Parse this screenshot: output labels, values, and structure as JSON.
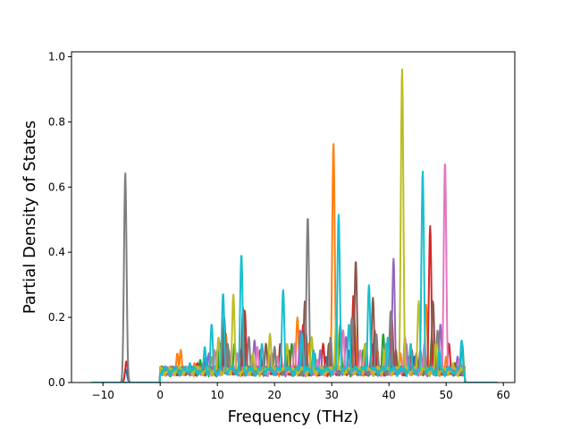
{
  "chart_data": {
    "type": "line",
    "title": "",
    "xlabel": "Frequency (THz)",
    "ylabel": "Partial Density of States",
    "xlim": [
      -15.5,
      62.0
    ],
    "ylim": [
      0.0,
      1.015
    ],
    "xticks": [
      -10,
      0,
      10,
      20,
      30,
      40,
      50,
      60
    ],
    "yticks": [
      0.0,
      0.2,
      0.4,
      0.6,
      0.8,
      1.0
    ],
    "xtick_labels": [
      "−10",
      "0",
      "10",
      "20",
      "30",
      "40",
      "50",
      "60"
    ],
    "ytick_labels": [
      "0.0",
      "0.2",
      "0.4",
      "0.6",
      "0.8",
      "1.0"
    ],
    "grid": false,
    "legend": "none",
    "x_range": [
      -12.0,
      59.0
    ],
    "series": [
      {
        "color": "#1f77b4",
        "peaks": [
          [
            -6.0,
            0.04
          ],
          [
            2.0,
            0.03
          ],
          [
            5.0,
            0.05
          ],
          [
            8.0,
            0.08
          ],
          [
            10.5,
            0.12
          ],
          [
            14.0,
            0.1
          ],
          [
            18.0,
            0.07
          ],
          [
            22.0,
            0.09
          ],
          [
            25.5,
            0.15
          ],
          [
            29.0,
            0.08
          ],
          [
            33.0,
            0.1
          ],
          [
            37.0,
            0.12
          ],
          [
            41.0,
            0.06
          ],
          [
            44.5,
            0.08
          ],
          [
            48.0,
            0.06
          ],
          [
            51.0,
            0.04
          ],
          [
            52.5,
            0.06
          ]
        ]
      },
      {
        "color": "#ff7f0e",
        "peaks": [
          [
            3.0,
            0.09
          ],
          [
            3.6,
            0.1
          ],
          [
            6.0,
            0.06
          ],
          [
            9.0,
            0.08
          ],
          [
            11.5,
            0.15
          ],
          [
            15.0,
            0.12
          ],
          [
            19.0,
            0.09
          ],
          [
            24.0,
            0.2
          ],
          [
            26.0,
            0.12
          ],
          [
            30.3,
            0.735
          ],
          [
            34.0,
            0.18
          ],
          [
            38.0,
            0.1
          ],
          [
            42.0,
            0.09
          ],
          [
            46.5,
            0.24
          ],
          [
            50.0,
            0.08
          ]
        ]
      },
      {
        "color": "#2ca02c",
        "peaks": [
          [
            4.0,
            0.04
          ],
          [
            7.0,
            0.07
          ],
          [
            10.0,
            0.1
          ],
          [
            13.0,
            0.12
          ],
          [
            16.0,
            0.08
          ],
          [
            20.0,
            0.1
          ],
          [
            23.0,
            0.12
          ],
          [
            27.0,
            0.09
          ],
          [
            31.5,
            0.18
          ],
          [
            35.5,
            0.1
          ],
          [
            39.0,
            0.15
          ],
          [
            43.0,
            0.12
          ],
          [
            47.5,
            0.14
          ],
          [
            52.8,
            0.12
          ]
        ]
      },
      {
        "color": "#d62728",
        "peaks": [
          [
            -5.9,
            0.065
          ],
          [
            2.5,
            0.03
          ],
          [
            6.5,
            0.06
          ],
          [
            10.8,
            0.14
          ],
          [
            14.8,
            0.22
          ],
          [
            17.5,
            0.1
          ],
          [
            21.0,
            0.12
          ],
          [
            25.0,
            0.18
          ],
          [
            28.5,
            0.12
          ],
          [
            33.8,
            0.27
          ],
          [
            37.5,
            0.16
          ],
          [
            40.5,
            0.2
          ],
          [
            44.0,
            0.1
          ],
          [
            47.2,
            0.48
          ],
          [
            50.5,
            0.12
          ]
        ]
      },
      {
        "color": "#9467bd",
        "peaks": [
          [
            5.5,
            0.05
          ],
          [
            8.5,
            0.09
          ],
          [
            12.0,
            0.1
          ],
          [
            16.5,
            0.13
          ],
          [
            19.5,
            0.09
          ],
          [
            24.5,
            0.16
          ],
          [
            28.0,
            0.1
          ],
          [
            32.5,
            0.14
          ],
          [
            36.0,
            0.12
          ],
          [
            40.8,
            0.38
          ],
          [
            43.5,
            0.08
          ],
          [
            49.0,
            0.18
          ],
          [
            52.0,
            0.08
          ]
        ]
      },
      {
        "color": "#8c564b",
        "peaks": [
          [
            1.5,
            0.02
          ],
          [
            6.8,
            0.05
          ],
          [
            11.2,
            0.2
          ],
          [
            14.5,
            0.23
          ],
          [
            18.5,
            0.12
          ],
          [
            22.5,
            0.1
          ],
          [
            25.3,
            0.25
          ],
          [
            29.5,
            0.12
          ],
          [
            34.2,
            0.375
          ],
          [
            37.2,
            0.26
          ],
          [
            41.2,
            0.1
          ],
          [
            45.5,
            0.1
          ],
          [
            47.7,
            0.25
          ],
          [
            51.5,
            0.06
          ]
        ]
      },
      {
        "color": "#e377c2",
        "peaks": [
          [
            4.5,
            0.05
          ],
          [
            9.5,
            0.1
          ],
          [
            13.5,
            0.09
          ],
          [
            17.0,
            0.11
          ],
          [
            20.5,
            0.08
          ],
          [
            23.5,
            0.12
          ],
          [
            27.5,
            0.07
          ],
          [
            32.0,
            0.16
          ],
          [
            35.0,
            0.1
          ],
          [
            39.5,
            0.12
          ],
          [
            42.8,
            0.14
          ],
          [
            46.2,
            0.12
          ],
          [
            49.8,
            0.68
          ],
          [
            52.3,
            0.07
          ]
        ]
      },
      {
        "color": "#7f7f7f",
        "peaks": [
          [
            -6.1,
            0.645
          ],
          [
            3.2,
            0.04
          ],
          [
            7.5,
            0.06
          ],
          [
            11.8,
            0.12
          ],
          [
            15.5,
            0.14
          ],
          [
            20.0,
            0.11
          ],
          [
            25.8,
            0.51
          ],
          [
            29.8,
            0.14
          ],
          [
            33.5,
            0.2
          ],
          [
            37.8,
            0.15
          ],
          [
            40.3,
            0.22
          ],
          [
            44.8,
            0.09
          ],
          [
            48.5,
            0.16
          ],
          [
            51.8,
            0.05
          ]
        ]
      },
      {
        "color": "#bcbd22",
        "peaks": [
          [
            2.8,
            0.03
          ],
          [
            6.2,
            0.05
          ],
          [
            10.2,
            0.14
          ],
          [
            12.8,
            0.27
          ],
          [
            16.2,
            0.09
          ],
          [
            19.2,
            0.15
          ],
          [
            22.2,
            0.12
          ],
          [
            26.5,
            0.14
          ],
          [
            30.8,
            0.2
          ],
          [
            35.8,
            0.12
          ],
          [
            39.2,
            0.1
          ],
          [
            42.3,
            0.965
          ],
          [
            45.2,
            0.25
          ],
          [
            48.2,
            0.12
          ],
          [
            51.2,
            0.06
          ]
        ]
      },
      {
        "color": "#17becf",
        "peaks": [
          [
            1.0,
            0.02
          ],
          [
            5.2,
            0.06
          ],
          [
            7.8,
            0.11
          ],
          [
            9.0,
            0.18
          ],
          [
            11.0,
            0.275
          ],
          [
            14.2,
            0.395
          ],
          [
            17.8,
            0.12
          ],
          [
            21.5,
            0.285
          ],
          [
            24.8,
            0.15
          ],
          [
            26.8,
            0.1
          ],
          [
            31.2,
            0.515
          ],
          [
            33.0,
            0.18
          ],
          [
            36.5,
            0.3
          ],
          [
            39.8,
            0.14
          ],
          [
            43.8,
            0.12
          ],
          [
            45.9,
            0.65
          ],
          [
            48.8,
            0.1
          ],
          [
            52.7,
            0.13
          ]
        ]
      }
    ]
  }
}
